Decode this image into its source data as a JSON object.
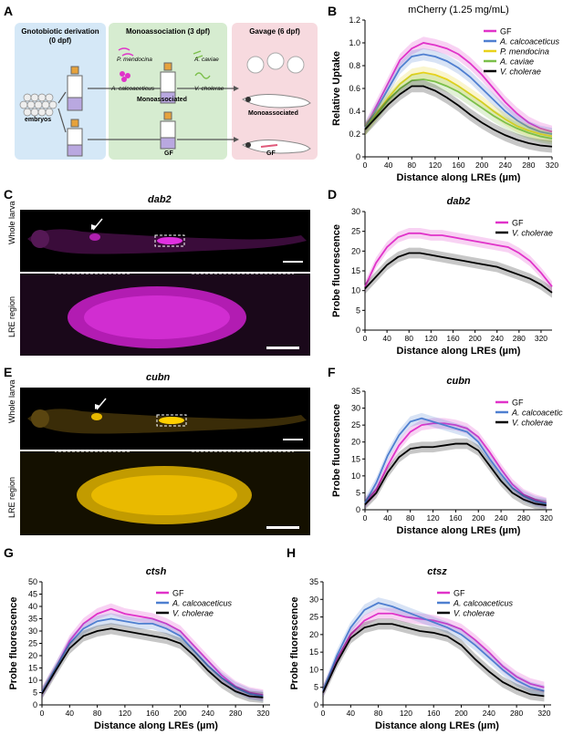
{
  "figure": {
    "panel_labels": [
      "A",
      "B",
      "C",
      "D",
      "E",
      "F",
      "G",
      "H"
    ],
    "panel_a": {
      "step1_title": "Gnotobiotic derivation",
      "step1_sub": "(0 dpf)",
      "step2_title": "Monoassociation (3 dpf)",
      "step3_title": "Gavage (6 dpf)",
      "embryos": "embryos",
      "monoassociated": "Monoassociated",
      "gf": "GF",
      "bugs": [
        "P. mendocina",
        "A. caviae",
        "A. calcoaceticus",
        "V. cholerae"
      ]
    },
    "panel_c": {
      "gene": "dab2",
      "label_top": "Whole larva",
      "label_bottom": "LRE region"
    },
    "panel_e": {
      "gene": "cubn",
      "label_top": "Whole larva",
      "label_bottom": "LRE region"
    },
    "colors": {
      "GF": "#e033c9",
      "Acal": "#4f7fd0",
      "Pmen": "#e8d21b",
      "Acav": "#7bbf4a",
      "Vcho": "#000000",
      "dab2_stain": "#d11ed1",
      "cubn_stain": "#e6b800"
    }
  },
  "chart_data": [
    {
      "id": "B",
      "type": "line",
      "title": "mCherry (1.25 mg/mL)",
      "xlabel": "Distance along LREs (µm)",
      "ylabel": "Relative Uptake",
      "xlim": [
        0,
        320
      ],
      "ylim": [
        0,
        1.2
      ],
      "xticks": [
        0,
        40,
        80,
        120,
        160,
        200,
        240,
        280,
        320
      ],
      "yticks": [
        0,
        0.2,
        0.4,
        0.6,
        0.8,
        1.0,
        1.2
      ],
      "ytick_labels": [
        "0",
        "0.2",
        "0.4",
        "0.6",
        "0.8",
        "1.0",
        "1.2"
      ],
      "legend": "right",
      "x": [
        0,
        20,
        40,
        60,
        80,
        100,
        120,
        140,
        160,
        180,
        200,
        220,
        240,
        260,
        280,
        300,
        320
      ],
      "series": [
        {
          "name": "GF",
          "color": "#e033c9",
          "values": [
            0.25,
            0.45,
            0.65,
            0.85,
            0.95,
            1.0,
            0.98,
            0.95,
            0.9,
            0.82,
            0.72,
            0.6,
            0.48,
            0.38,
            0.3,
            0.25,
            0.22
          ]
        },
        {
          "name": "A. calcoaceticus",
          "color": "#4f7fd0",
          "values": [
            0.25,
            0.42,
            0.6,
            0.78,
            0.88,
            0.9,
            0.88,
            0.84,
            0.78,
            0.7,
            0.6,
            0.5,
            0.4,
            0.32,
            0.26,
            0.22,
            0.2
          ]
        },
        {
          "name": "P. mendocina",
          "color": "#e8d21b",
          "values": [
            0.24,
            0.38,
            0.52,
            0.64,
            0.72,
            0.74,
            0.72,
            0.68,
            0.62,
            0.55,
            0.48,
            0.4,
            0.33,
            0.27,
            0.23,
            0.2,
            0.18
          ]
        },
        {
          "name": "A. caviae",
          "color": "#7bbf4a",
          "values": [
            0.24,
            0.37,
            0.5,
            0.6,
            0.67,
            0.68,
            0.66,
            0.62,
            0.57,
            0.5,
            0.43,
            0.36,
            0.3,
            0.25,
            0.21,
            0.18,
            0.16
          ]
        },
        {
          "name": "V. cholerae",
          "color": "#000000",
          "values": [
            0.24,
            0.35,
            0.46,
            0.55,
            0.62,
            0.62,
            0.58,
            0.52,
            0.45,
            0.37,
            0.3,
            0.24,
            0.19,
            0.15,
            0.12,
            0.1,
            0.09
          ]
        }
      ]
    },
    {
      "id": "D",
      "type": "line",
      "title": "dab2",
      "xlabel": "Distance along LREs (µm)",
      "ylabel": "Probe fluorescence",
      "xlim": [
        0,
        340
      ],
      "ylim": [
        0,
        30
      ],
      "xticks": [
        0,
        40,
        80,
        120,
        160,
        200,
        240,
        280,
        320
      ],
      "yticks": [
        0,
        5,
        10,
        15,
        20,
        25,
        30
      ],
      "legend": "top-right",
      "x": [
        0,
        20,
        40,
        60,
        80,
        100,
        120,
        140,
        160,
        180,
        200,
        220,
        240,
        260,
        280,
        300,
        320,
        340
      ],
      "series": [
        {
          "name": "GF",
          "color": "#e033c9",
          "values": [
            11,
            17,
            21,
            23.5,
            24.5,
            24.5,
            24,
            24,
            23.5,
            23,
            22.5,
            22,
            21.5,
            21,
            19.5,
            17.5,
            14.5,
            11
          ]
        },
        {
          "name": "V. cholerae",
          "color": "#000000",
          "values": [
            10.5,
            13.5,
            16.5,
            18.5,
            19.5,
            19.5,
            19,
            18.5,
            18,
            17.5,
            17,
            16.5,
            16,
            15,
            14,
            13,
            11.5,
            9.5
          ]
        }
      ]
    },
    {
      "id": "F",
      "type": "line",
      "title": "cubn",
      "xlabel": "Distance along LREs (µm)",
      "ylabel": "Probe fluorescence",
      "xlim": [
        0,
        330
      ],
      "ylim": [
        0,
        35
      ],
      "xticks": [
        0,
        40,
        80,
        120,
        160,
        200,
        240,
        280,
        320
      ],
      "yticks": [
        0,
        5,
        10,
        15,
        20,
        25,
        30,
        35
      ],
      "legend": "top-right",
      "x": [
        0,
        20,
        40,
        60,
        80,
        100,
        120,
        140,
        160,
        180,
        200,
        220,
        240,
        260,
        280,
        300,
        320
      ],
      "series": [
        {
          "name": "GF",
          "color": "#e033c9",
          "values": [
            2,
            6,
            13,
            19,
            23,
            25,
            25.5,
            25.5,
            25,
            24,
            21.5,
            17,
            12,
            7.5,
            4.5,
            3,
            2
          ]
        },
        {
          "name": "A. calcoaceticus",
          "color": "#4f7fd0",
          "values": [
            2,
            8,
            16,
            22,
            26,
            27,
            26,
            25,
            24,
            23,
            20,
            15,
            10.5,
            6.5,
            4,
            2.5,
            1.8
          ]
        },
        {
          "name": "V. cholerae",
          "color": "#000000",
          "values": [
            1.5,
            5,
            11,
            15.5,
            18,
            18.5,
            18.5,
            19,
            19.5,
            19.5,
            17.5,
            13,
            8.5,
            5,
            3,
            1.8,
            1.3
          ]
        }
      ]
    },
    {
      "id": "G",
      "type": "line",
      "title": "ctsh",
      "xlabel": "Distance along LREs (µm)",
      "ylabel": "Probe fluorescence",
      "xlim": [
        0,
        330
      ],
      "ylim": [
        0,
        50
      ],
      "xticks": [
        0,
        40,
        80,
        120,
        160,
        200,
        240,
        280,
        320
      ],
      "yticks": [
        0,
        5,
        10,
        15,
        20,
        25,
        30,
        35,
        40,
        45,
        50
      ],
      "legend": "top-right",
      "x": [
        0,
        20,
        40,
        60,
        80,
        100,
        120,
        140,
        160,
        180,
        200,
        220,
        240,
        260,
        280,
        300,
        320
      ],
      "series": [
        {
          "name": "GF",
          "color": "#e033c9",
          "values": [
            5,
            15,
            26,
            33,
            37,
            39,
            37,
            36,
            35,
            33,
            30,
            24,
            18,
            12,
            7.5,
            5,
            4
          ]
        },
        {
          "name": "A. calcoaceticus",
          "color": "#4f7fd0",
          "values": [
            5,
            15,
            25,
            31,
            34,
            35,
            34,
            33,
            33,
            31,
            28,
            22,
            16,
            11,
            7,
            4.5,
            3.5
          ]
        },
        {
          "name": "V. cholerae",
          "color": "#000000",
          "values": [
            4.5,
            14,
            23,
            28,
            30,
            31,
            30,
            29,
            28,
            27,
            25,
            20,
            14,
            9,
            5.5,
            3.5,
            3
          ]
        }
      ]
    },
    {
      "id": "H",
      "type": "line",
      "title": "ctsz",
      "xlabel": "Distance along LREs (µm)",
      "ylabel": "Probe fluorescence",
      "xlim": [
        0,
        330
      ],
      "ylim": [
        0,
        35
      ],
      "xticks": [
        0,
        40,
        80,
        120,
        160,
        200,
        240,
        280,
        320
      ],
      "yticks": [
        0,
        5,
        10,
        15,
        20,
        25,
        30,
        35
      ],
      "legend": "top-right",
      "x": [
        0,
        20,
        40,
        60,
        80,
        100,
        120,
        140,
        160,
        180,
        200,
        220,
        240,
        260,
        280,
        300,
        320
      ],
      "series": [
        {
          "name": "GF",
          "color": "#e033c9",
          "values": [
            4,
            13,
            20,
            24,
            26,
            26,
            25,
            24.5,
            24,
            23,
            21.5,
            18.5,
            15,
            11,
            8,
            6,
            5
          ]
        },
        {
          "name": "A. calcoaceticus",
          "color": "#4f7fd0",
          "values": [
            4,
            14,
            22,
            27,
            29,
            28,
            26.5,
            25,
            23.5,
            22,
            20,
            17,
            13.5,
            10,
            7,
            5,
            4
          ]
        },
        {
          "name": "V. cholerae",
          "color": "#000000",
          "values": [
            3.5,
            12,
            19,
            22,
            23,
            23,
            22,
            21,
            20.5,
            19.5,
            17,
            13,
            9.5,
            6.5,
            4.5,
            3,
            2.5
          ]
        }
      ]
    }
  ]
}
